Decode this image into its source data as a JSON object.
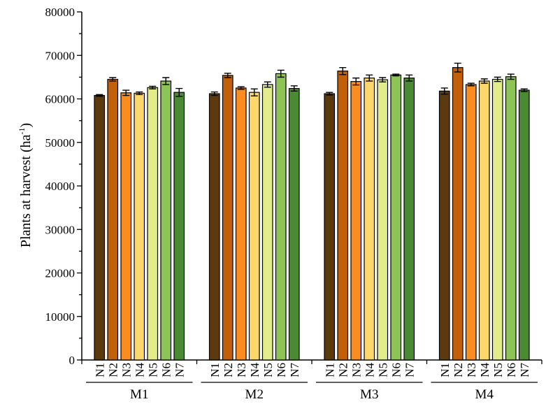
{
  "chart_data": {
    "type": "bar",
    "ylabel": "Plants at harvest (ha",
    "ylabel_sup": "-1",
    "ylabel_tail": ")",
    "ylim": [
      0,
      80000
    ],
    "yticks": [
      0,
      10000,
      20000,
      30000,
      40000,
      50000,
      60000,
      70000,
      80000
    ],
    "ytick_labels": [
      "0",
      "10000",
      "20000",
      "30000",
      "40000",
      "50000",
      "60000",
      "70000",
      "80000"
    ],
    "grid": false,
    "legend": "none",
    "series_labels": [
      "N1",
      "N2",
      "N3",
      "N4",
      "N5",
      "N6",
      "N7"
    ],
    "colors": [
      "#5c3a0e",
      "#c2600a",
      "#fb8c1f",
      "#fcd76b",
      "#e3ec8a",
      "#8ec455",
      "#4a8a33"
    ],
    "groups": [
      {
        "name": "M1",
        "values": [
          60800,
          64500,
          61400,
          61300,
          62600,
          64100,
          61500
        ],
        "errors": [
          200,
          400,
          600,
          300,
          300,
          800,
          900
        ]
      },
      {
        "name": "M2",
        "values": [
          61200,
          65400,
          62500,
          61500,
          63300,
          65800,
          62400
        ],
        "errors": [
          400,
          500,
          300,
          800,
          600,
          800,
          600
        ]
      },
      {
        "name": "M3",
        "values": [
          61200,
          66400,
          64000,
          64800,
          64400,
          65500,
          64800
        ],
        "errors": [
          300,
          800,
          800,
          700,
          500,
          200,
          700
        ]
      },
      {
        "name": "M4",
        "values": [
          61800,
          67200,
          63300,
          64100,
          64500,
          65100,
          62000
        ],
        "errors": [
          700,
          1000,
          300,
          500,
          500,
          600,
          300
        ]
      }
    ]
  }
}
